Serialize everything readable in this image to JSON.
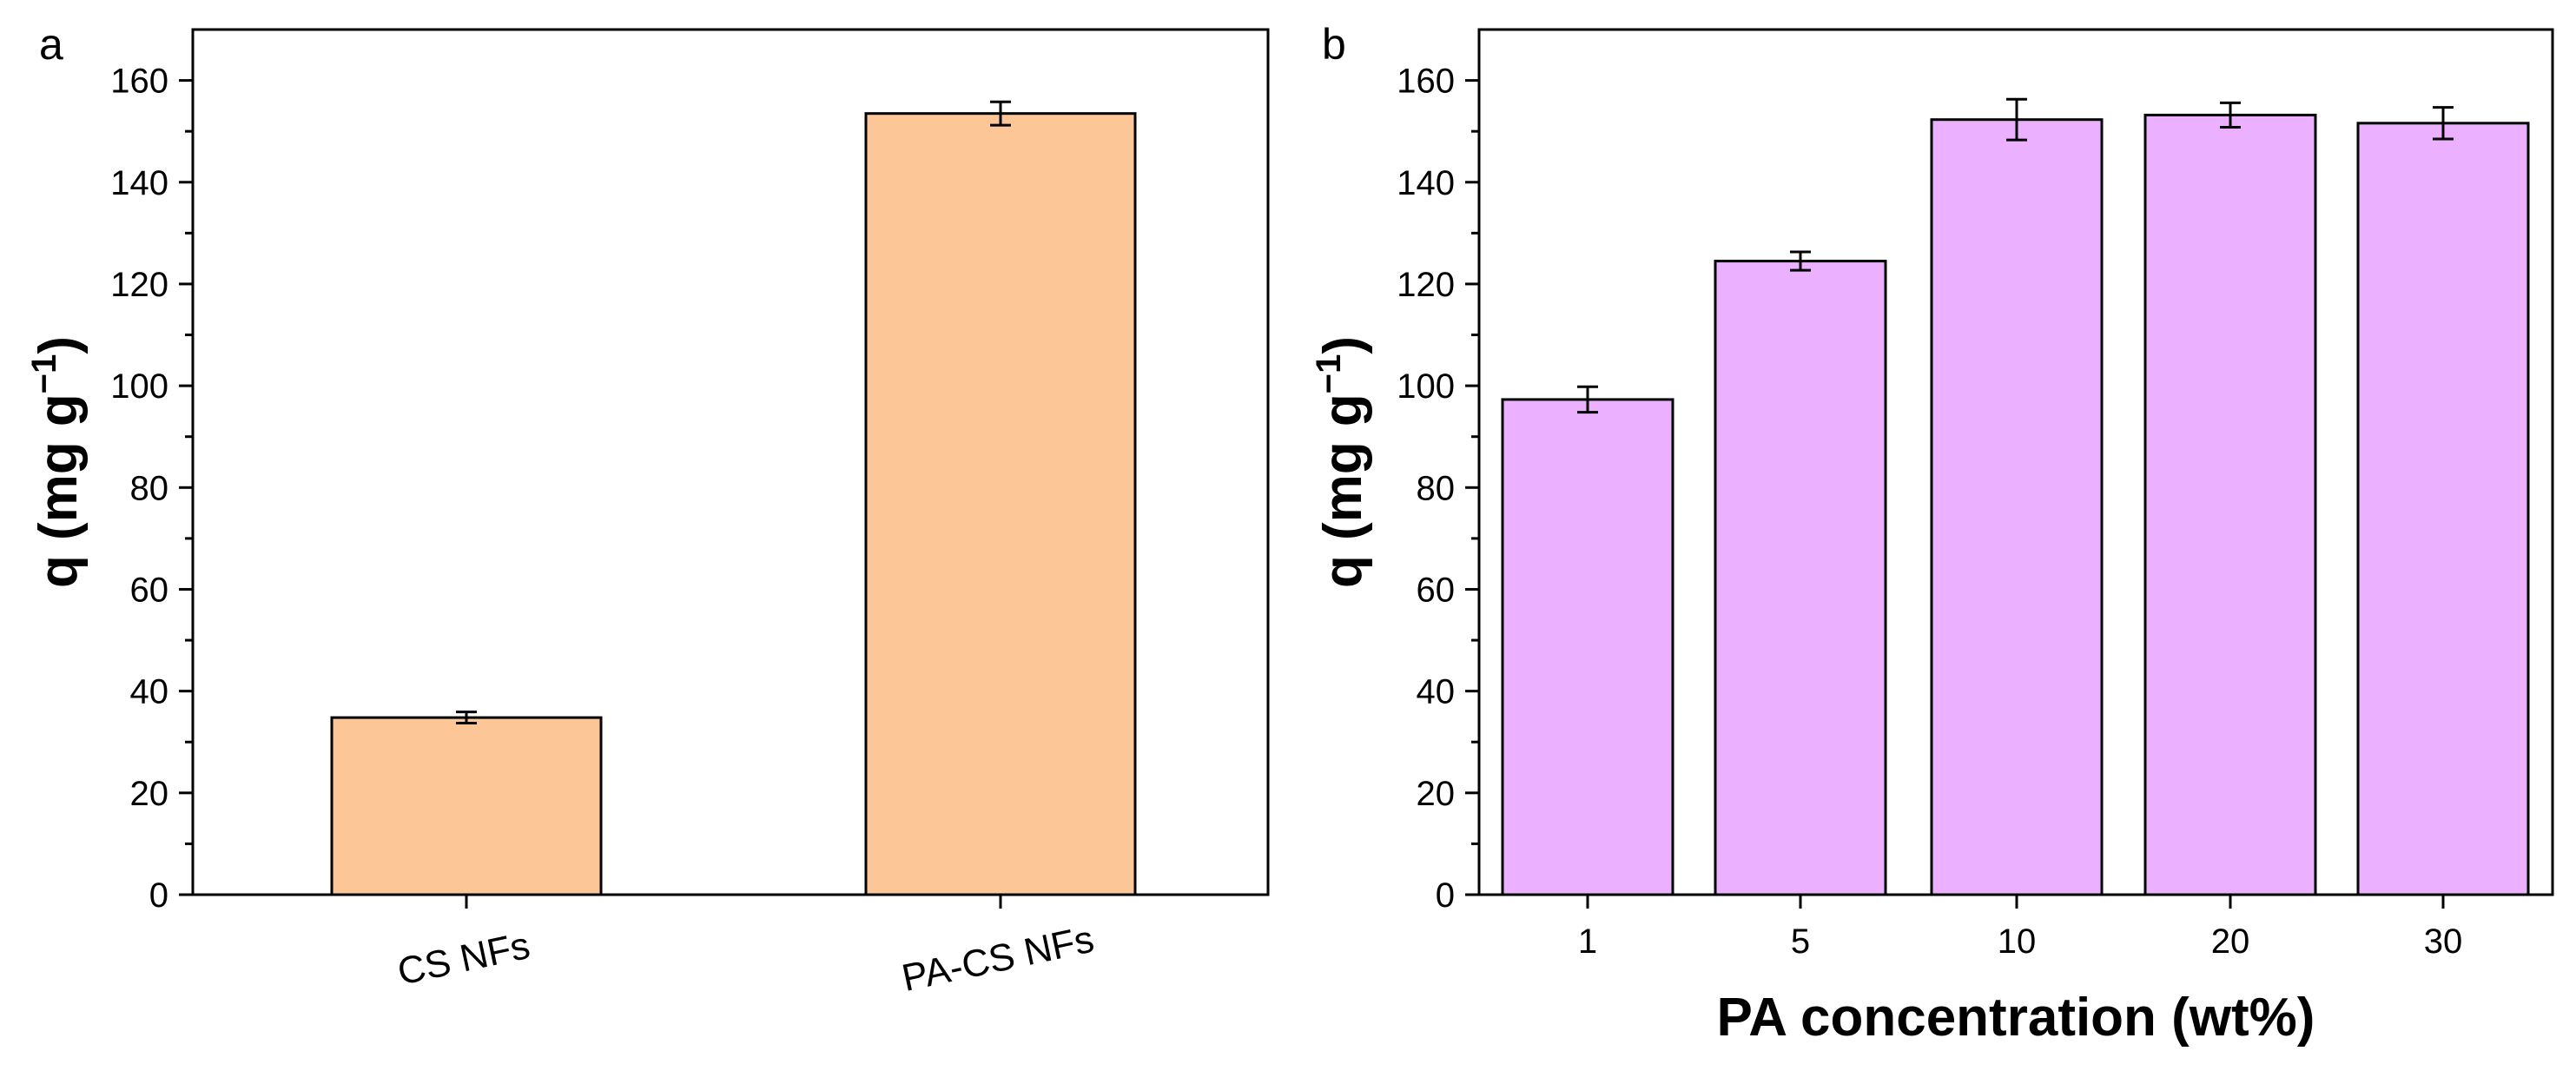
{
  "chart_data": [
    {
      "panel": "a",
      "type": "bar",
      "categories": [
        "CS NFs",
        "PA-CS NFs"
      ],
      "values": [
        34.8,
        153.5
      ],
      "errors": [
        1.1,
        2.3
      ],
      "ylabel": "q (mg g",
      "ylabel_sup": "−1",
      "ylabel_close": ")",
      "xlabel": "",
      "ylim": [
        0,
        170
      ],
      "yticks": [
        "0",
        "20",
        "40",
        "60",
        "80",
        "100",
        "120",
        "140",
        "160"
      ],
      "bar_color": "#fdc697",
      "grid": false
    },
    {
      "panel": "b",
      "type": "bar",
      "categories": [
        "1",
        "5",
        "10",
        "20",
        "30"
      ],
      "values": [
        97.3,
        124.5,
        152.3,
        153.2,
        151.6
      ],
      "errors": [
        2.5,
        1.8,
        4.0,
        2.4,
        3.1
      ],
      "ylabel": "q (mg g",
      "ylabel_sup": "−1",
      "ylabel_close": ")",
      "xlabel": "PA concentration (wt%)",
      "ylim": [
        0,
        170
      ],
      "yticks": [
        "0",
        "20",
        "40",
        "60",
        "80",
        "100",
        "120",
        "140",
        "160"
      ],
      "bar_color": "#ebb0ff",
      "grid": false
    }
  ]
}
